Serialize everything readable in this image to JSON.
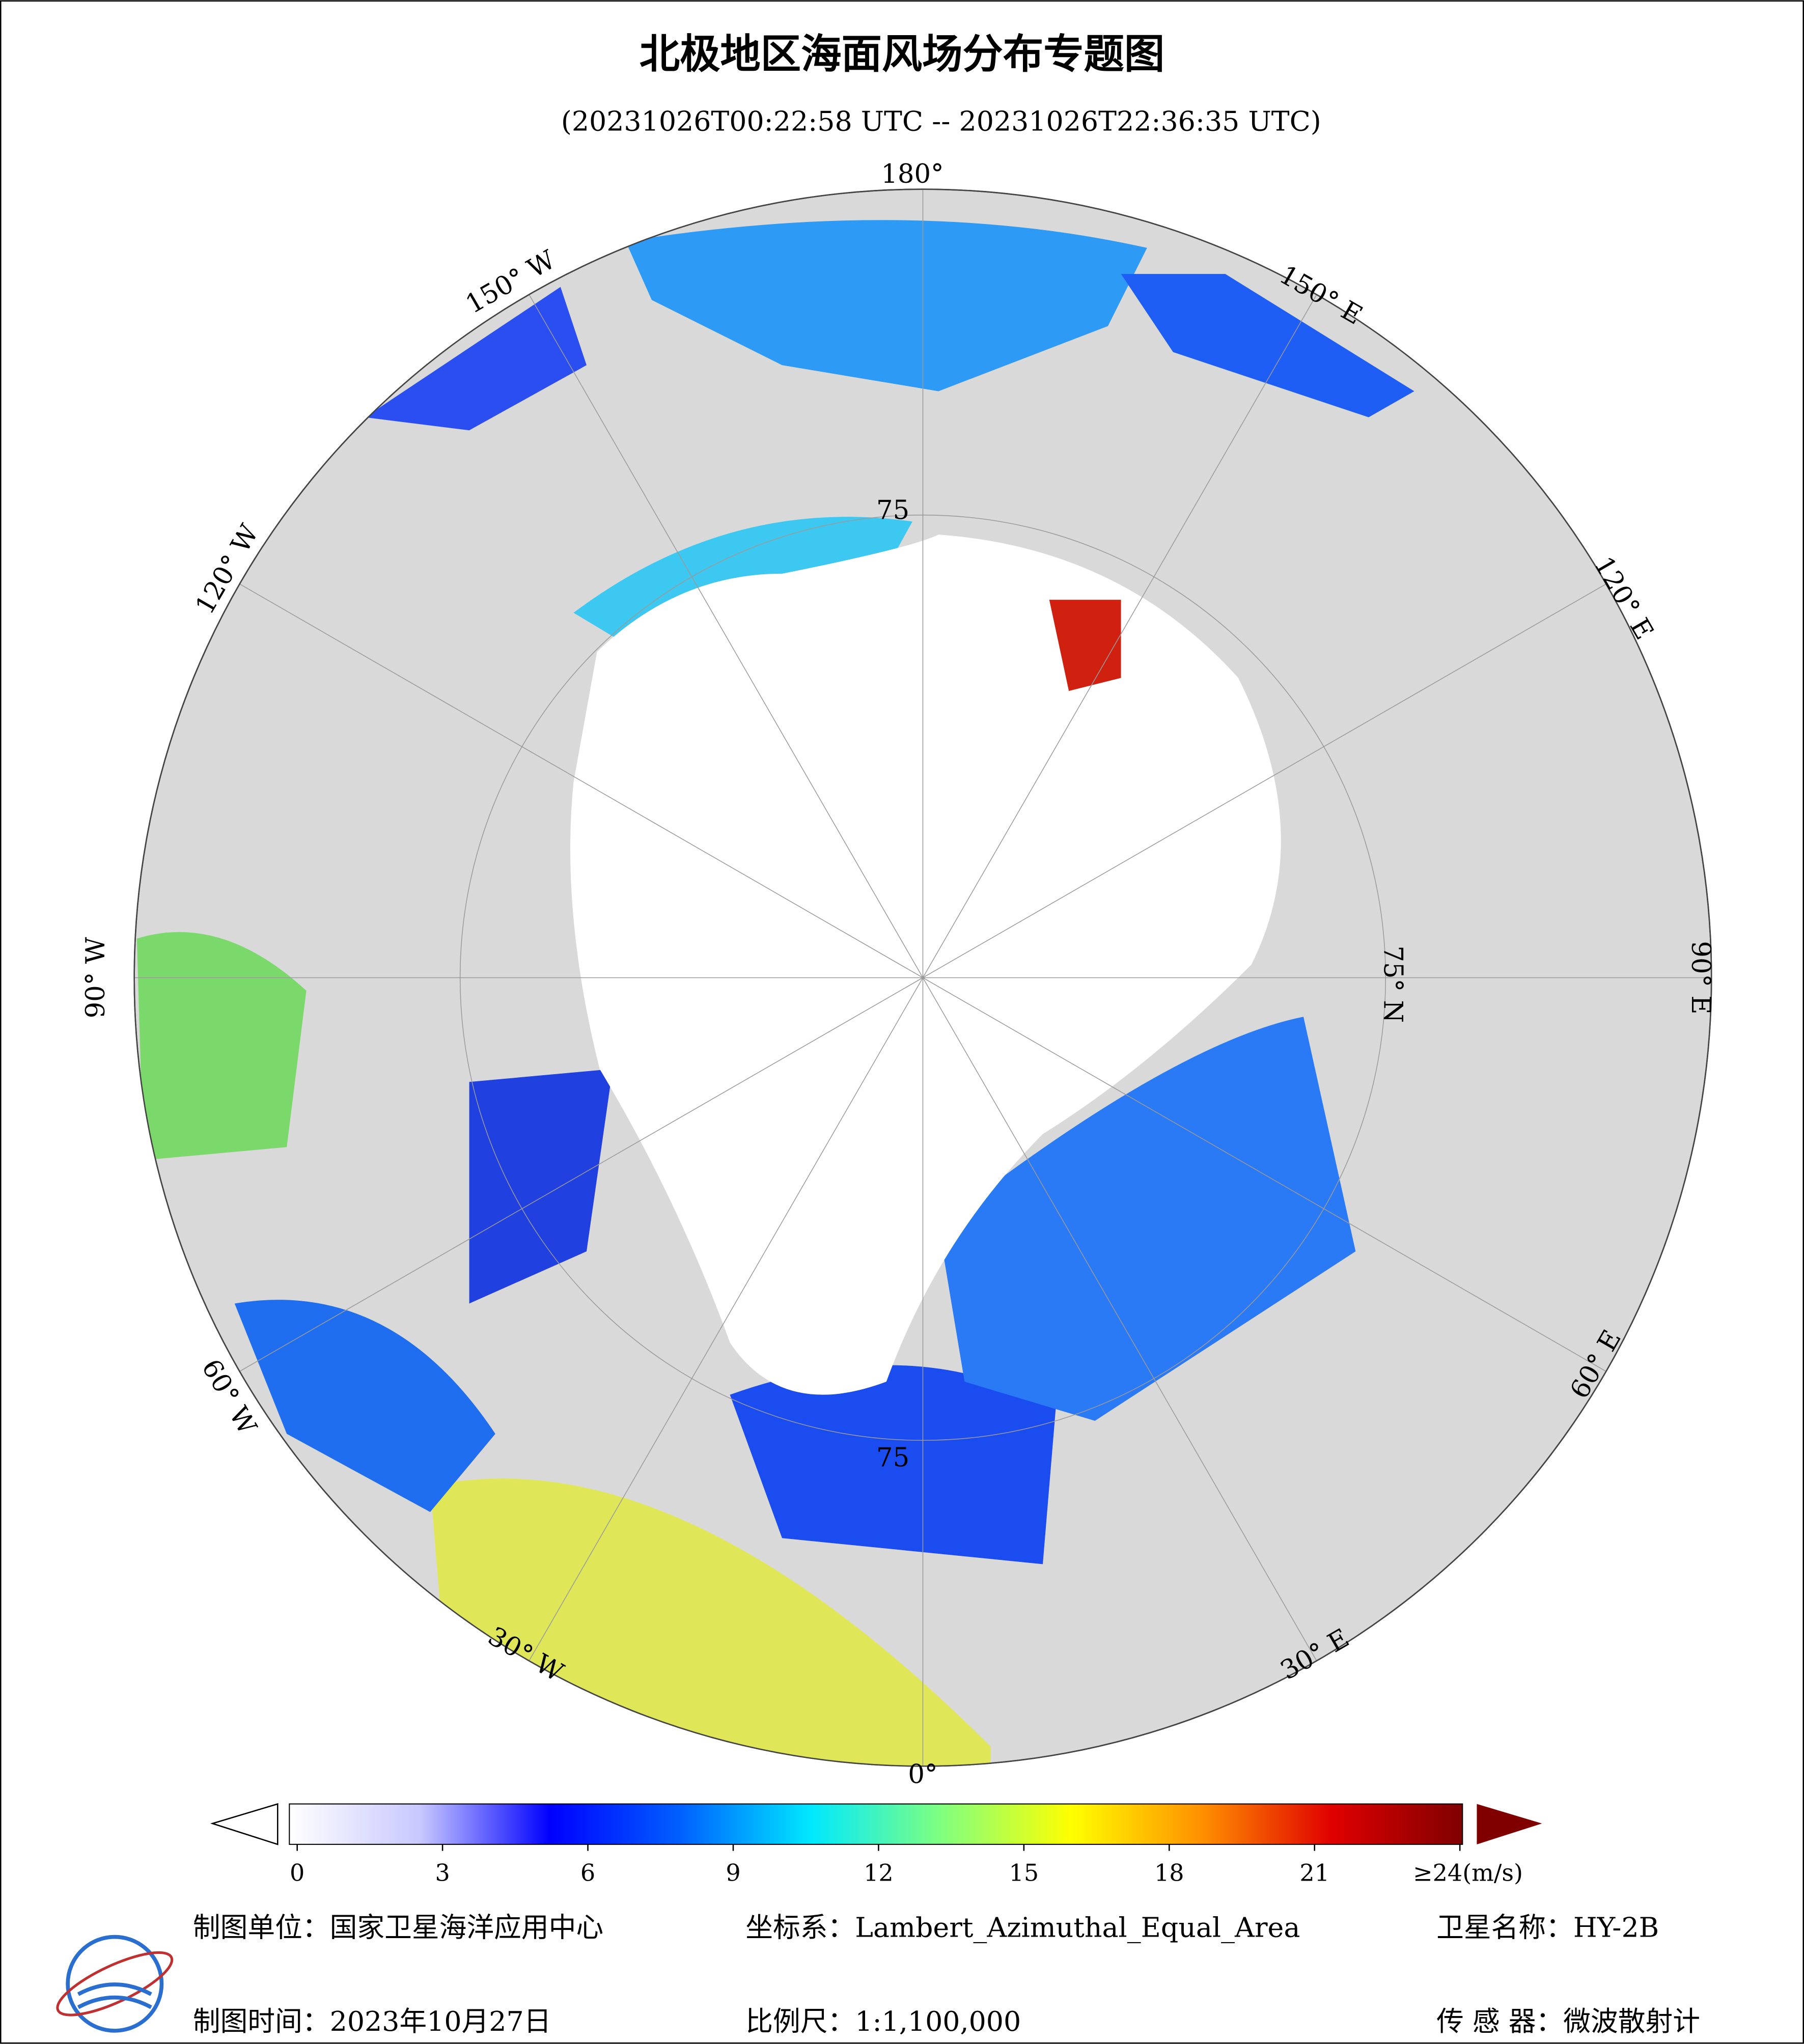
{
  "header": {
    "title": "北极地区海面风场分布专题图",
    "subtitle": "(20231026T00:22:58 UTC -- 20231026T22:36:35 UTC)"
  },
  "map": {
    "lon_labels": [
      "180°",
      "150° W",
      "120° W",
      "90° W",
      "60° W",
      "30° W",
      "0°",
      "30° E",
      "60° E",
      "90° E",
      "120° E",
      "150° E"
    ],
    "lat_labels": [
      "75° N",
      "75",
      "75"
    ]
  },
  "colorbar": {
    "lim": [
      0,
      24
    ],
    "ticks": [
      0,
      3,
      6,
      9,
      12,
      15,
      18,
      21,
      {
        "value": 24,
        "label": "≥24(m/s)"
      }
    ],
    "colors": [
      "#ffffff",
      "#c8c8ff",
      "#0000ff",
      "#0060ff",
      "#00e8ff",
      "#80ff80",
      "#ffff00",
      "#ff9000",
      "#e00000",
      "#800000"
    ]
  },
  "footer": {
    "unit": "制图单位：国家卫星海洋应用中心",
    "projection": "坐标系：Lambert_Azimuthal_Equal_Area",
    "satellite": "卫星名称：HY-2B",
    "date": "制图时间：2023年10月27日",
    "scale": "比例尺：1:1,100,000",
    "sensor": "传 感 器：微波散射计"
  }
}
